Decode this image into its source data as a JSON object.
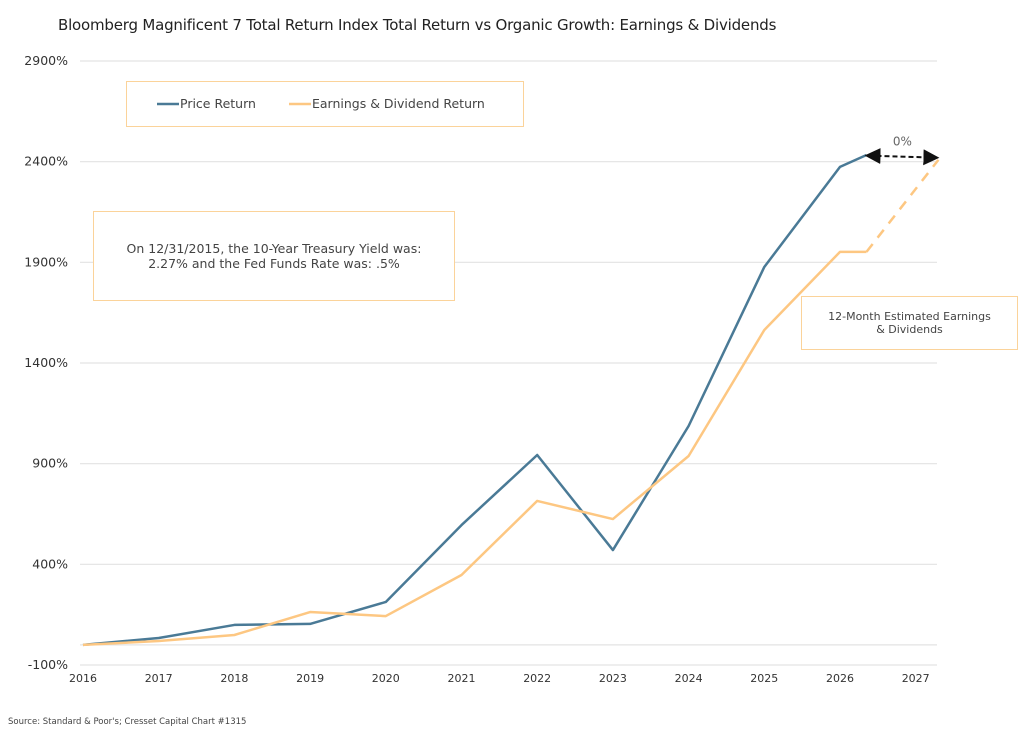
{
  "chart_data": {
    "type": "line",
    "title": "Bloomberg Magnificent 7 Total Return Index Total Return vs Organic Growth: Earnings & Dividends",
    "xlabel": "",
    "ylabel": "",
    "xlim": [
      2016,
      2027.3
    ],
    "ylim": [
      -100,
      2900
    ],
    "yticks": [
      -100,
      400,
      900,
      1400,
      1900,
      2400,
      2900
    ],
    "ytick_labels": [
      "-100%",
      "400%",
      "900%",
      "1400%",
      "1900%",
      "2400%",
      "2900%"
    ],
    "xticks": [
      2016,
      2017,
      2018,
      2019,
      2020,
      2021,
      2022,
      2023,
      2024,
      2025,
      2026,
      2027
    ],
    "xtick_labels": [
      "2016",
      "2017",
      "2018",
      "2019",
      "2020",
      "2021",
      "2022",
      "2023",
      "2024",
      "2025",
      "2026",
      "2027"
    ],
    "grid": true,
    "legend_position": "top-left",
    "series": [
      {
        "name": "Price Return",
        "color": "#4a7a96",
        "x": [
          2016,
          2017,
          2018,
          2019,
          2020,
          2021,
          2022,
          2023,
          2024,
          2025,
          2026,
          2026.35
        ],
        "y": [
          0,
          34,
          99,
          104,
          213,
          595,
          943,
          471,
          1087,
          1877,
          2374,
          2433
        ]
      },
      {
        "name": "Earnings & Dividend Return",
        "color": "#fdc782",
        "x": [
          2016,
          2017,
          2018,
          2019,
          2020,
          2021,
          2022,
          2023,
          2024,
          2025,
          2026,
          2026.35
        ],
        "y": [
          0,
          19,
          49,
          163,
          143,
          347,
          715,
          625,
          938,
          1564,
          1952,
          1952
        ],
        "projection": {
          "x": [
            2026.35,
            2027.3
          ],
          "y": [
            1952,
            2409
          ]
        }
      }
    ],
    "annotations": {
      "gap_label": "0%",
      "gap_arrow": {
        "x": [
          2026.35,
          2027.3
        ],
        "y": 2430
      },
      "note_rates": "On 12/31/2015, the 10-Year Treasury Yield was: 2.27% and the Fed Funds Rate was: .5%",
      "note_projection": "12-Month Estimated Earnings & Dividends"
    },
    "source": "Source: Standard & Poor's; Cresset Capital Chart #1315"
  }
}
